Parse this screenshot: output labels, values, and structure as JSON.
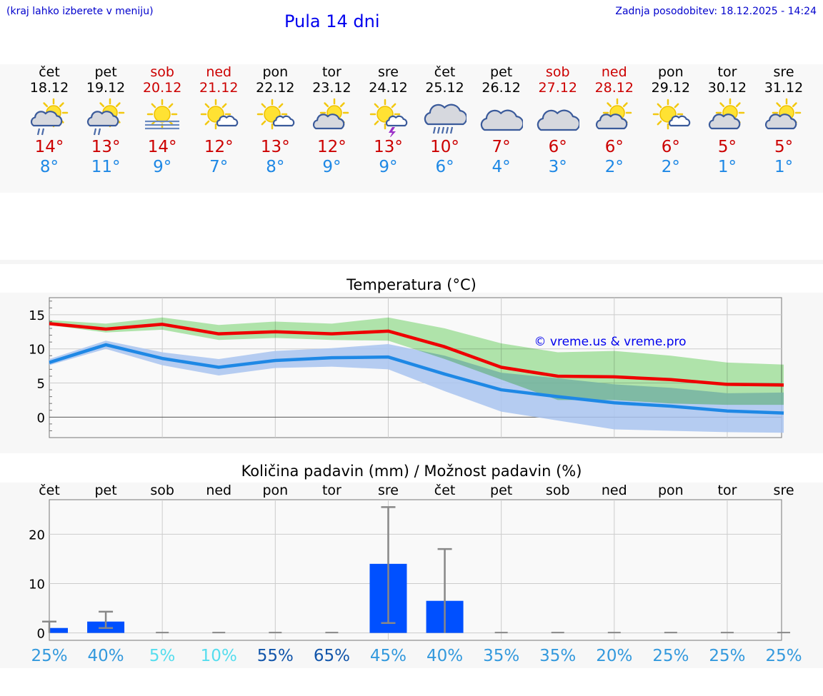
{
  "header": {
    "hint": "(kraj lahko izberete v meniju)",
    "title": "Pula 14 dni",
    "updated": "Zadnja posodobitev: 18.12.2025 - 14:24"
  },
  "days": [
    {
      "name": "čet",
      "date": "18.12",
      "weekend": false,
      "icon": "sun-cloud-rain-icon",
      "max": "14°",
      "min": "8°"
    },
    {
      "name": "pet",
      "date": "19.12",
      "weekend": false,
      "icon": "sun-cloud-rain-icon",
      "max": "13°",
      "min": "11°"
    },
    {
      "name": "sob",
      "date": "20.12",
      "weekend": true,
      "icon": "sun-fog-icon",
      "max": "14°",
      "min": "9°"
    },
    {
      "name": "ned",
      "date": "21.12",
      "weekend": true,
      "icon": "sun-small-cloud-icon",
      "max": "12°",
      "min": "7°"
    },
    {
      "name": "pon",
      "date": "22.12",
      "weekend": false,
      "icon": "sun-small-cloud-icon",
      "max": "13°",
      "min": "8°"
    },
    {
      "name": "tor",
      "date": "23.12",
      "weekend": false,
      "icon": "sun-cloud-icon",
      "max": "12°",
      "min": "9°"
    },
    {
      "name": "sre",
      "date": "24.12",
      "weekend": false,
      "icon": "sun-thunder-icon",
      "max": "13°",
      "min": "9°"
    },
    {
      "name": "čet",
      "date": "25.12",
      "weekend": false,
      "icon": "cloud-rain-icon",
      "max": "10°",
      "min": "6°"
    },
    {
      "name": "pet",
      "date": "26.12",
      "weekend": false,
      "icon": "cloud-icon",
      "max": "7°",
      "min": "4°"
    },
    {
      "name": "sob",
      "date": "27.12",
      "weekend": true,
      "icon": "cloud-icon",
      "max": "6°",
      "min": "3°"
    },
    {
      "name": "ned",
      "date": "28.12",
      "weekend": true,
      "icon": "sun-cloud-icon",
      "max": "6°",
      "min": "2°"
    },
    {
      "name": "pon",
      "date": "29.12",
      "weekend": false,
      "icon": "sun-small-cloud-icon",
      "max": "6°",
      "min": "2°"
    },
    {
      "name": "tor",
      "date": "30.12",
      "weekend": false,
      "icon": "sun-cloud-icon",
      "max": "5°",
      "min": "1°"
    },
    {
      "name": "sre",
      "date": "31.12",
      "weekend": false,
      "icon": "sun-cloud-icon",
      "max": "5°",
      "min": "1°"
    }
  ],
  "colors": {
    "max_line": "#ee0000",
    "min_line": "#1e88e5",
    "max_band": "#a6e5a0",
    "min_band": "#a9c4f0",
    "bar": "#0050ff",
    "weekend": "#cc0000"
  },
  "chart_data": [
    {
      "type": "line",
      "title": "Temperatura (°C)",
      "watermark": "© vreme.us & vreme.pro",
      "ylim": [
        -3,
        17.5
      ],
      "yticks": [
        0,
        5,
        10,
        15
      ],
      "x": [
        "18.12",
        "19.12",
        "20.12",
        "21.12",
        "22.12",
        "23.12",
        "24.12",
        "25.12",
        "26.12",
        "27.12",
        "28.12",
        "29.12",
        "30.12",
        "31.12"
      ],
      "series": [
        {
          "name": "max",
          "values": [
            13.7,
            12.9,
            13.6,
            12.2,
            12.5,
            12.2,
            12.6,
            10.3,
            7.3,
            6.0,
            5.9,
            5.5,
            4.8,
            4.7
          ]
        },
        {
          "name": "min",
          "values": [
            8.0,
            10.6,
            8.6,
            7.3,
            8.3,
            8.7,
            8.8,
            6.3,
            4.0,
            3.0,
            2.1,
            1.6,
            0.9,
            0.6
          ]
        },
        {
          "name": "max_range_low",
          "values": [
            13.5,
            12.4,
            12.8,
            11.3,
            11.6,
            11.3,
            11.2,
            8.5,
            5.5,
            2.5,
            2.5,
            2.0,
            1.8,
            1.8
          ]
        },
        {
          "name": "max_range_high",
          "values": [
            14.2,
            13.7,
            14.6,
            13.5,
            14.0,
            13.7,
            14.6,
            13.0,
            10.8,
            9.5,
            9.7,
            9.0,
            8.0,
            7.7
          ]
        },
        {
          "name": "min_range_low",
          "values": [
            7.6,
            10.0,
            7.6,
            6.1,
            7.2,
            7.4,
            7.0,
            3.8,
            0.8,
            -0.5,
            -1.8,
            -2.0,
            -2.2,
            -2.3
          ]
        },
        {
          "name": "min_range_high",
          "values": [
            8.5,
            11.2,
            9.5,
            8.5,
            9.7,
            10.1,
            10.7,
            9.0,
            6.5,
            5.7,
            4.8,
            4.3,
            3.5,
            3.6
          ]
        }
      ]
    },
    {
      "type": "bar",
      "title": "Količina padavin (mm) / Možnost padavin (%)",
      "categories": [
        "čet",
        "pet",
        "sob",
        "ned",
        "pon",
        "tor",
        "sre",
        "čet",
        "pet",
        "sob",
        "ned",
        "pon",
        "tor",
        "sre"
      ],
      "ylim": [
        -1.5,
        27
      ],
      "yticks": [
        0,
        10,
        20
      ],
      "values": [
        1.0,
        2.3,
        0,
        0,
        0,
        0,
        14.0,
        6.5,
        0,
        0,
        0,
        0,
        0,
        0
      ],
      "err_low": [
        0,
        1.0,
        0,
        0,
        0,
        0,
        2.0,
        0,
        0,
        0,
        0,
        0,
        0,
        0
      ],
      "err_high": [
        2.3,
        4.3,
        0,
        0,
        0,
        0,
        25.5,
        17.0,
        0,
        0,
        0,
        0,
        0,
        0
      ],
      "probability": [
        "25%",
        "40%",
        "5%",
        "10%",
        "55%",
        "65%",
        "45%",
        "40%",
        "35%",
        "35%",
        "20%",
        "25%",
        "25%",
        "25%"
      ],
      "probability_colors": [
        "#3399dd",
        "#3399dd",
        "#55ddee",
        "#55ddee",
        "#1155aa",
        "#1155aa",
        "#3399dd",
        "#3399dd",
        "#3399dd",
        "#3399dd",
        "#3399dd",
        "#3399dd",
        "#3399dd",
        "#3399dd"
      ]
    }
  ]
}
